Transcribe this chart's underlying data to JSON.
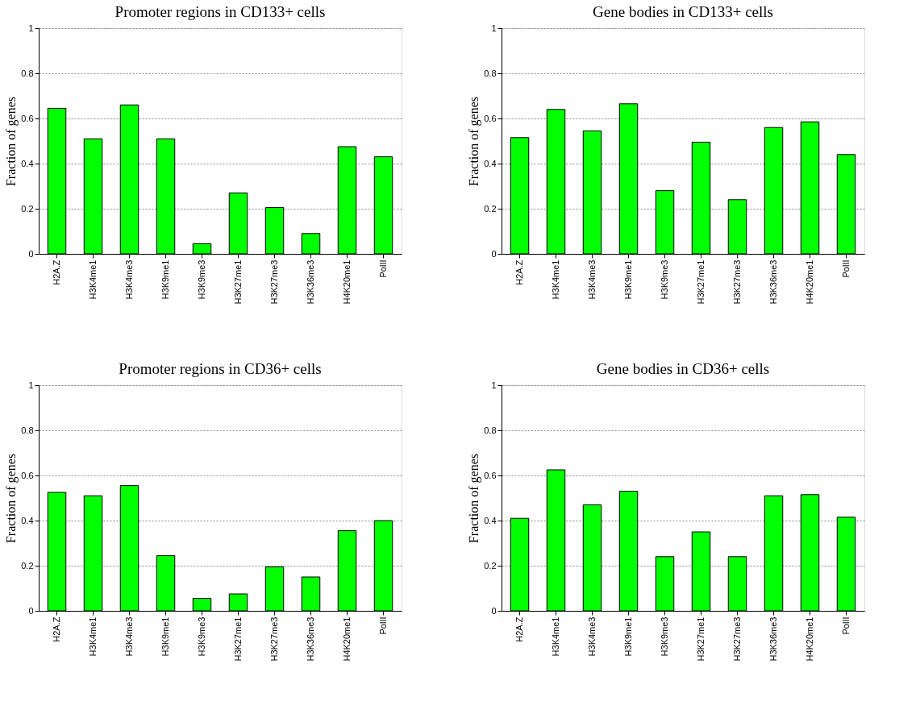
{
  "chart_data": [
    {
      "type": "bar",
      "title": "Promoter regions in CD133+ cells",
      "ylabel": "Fraction of genes",
      "categories": [
        "H2A.Z",
        "H3K4me1",
        "H3K4me3",
        "H3K9me1",
        "H3K9me3",
        "H3K27me1",
        "H3K27me3",
        "H3K36me3",
        "H4K20me1",
        "PolII"
      ],
      "values": [
        0.645,
        0.51,
        0.66,
        0.51,
        0.045,
        0.27,
        0.205,
        0.09,
        0.475,
        0.43
      ],
      "color": "#00ff00",
      "ylim": [
        0,
        1
      ],
      "yticks": [
        0,
        0.2,
        0.4,
        0.6,
        0.8,
        1
      ],
      "grid": "y"
    },
    {
      "type": "bar",
      "title": "Gene bodies in CD133+ cells",
      "ylabel": "Fraction of genes",
      "categories": [
        "H2A.Z",
        "H3K4me1",
        "H3K4me3",
        "H3K9me1",
        "H3K9me3",
        "H3K27me1",
        "H3K27me3",
        "H3K36me3",
        "H4K20me1",
        "PolII"
      ],
      "values": [
        0.515,
        0.64,
        0.545,
        0.665,
        0.28,
        0.495,
        0.24,
        0.56,
        0.585,
        0.44
      ],
      "color": "#00ff00",
      "ylim": [
        0,
        1
      ],
      "yticks": [
        0,
        0.2,
        0.4,
        0.6,
        0.8,
        1
      ],
      "grid": "y"
    },
    {
      "type": "bar",
      "title": "Promoter regions in CD36+ cells",
      "ylabel": "Fraction of genes",
      "categories": [
        "H2A.Z",
        "H3K4me1",
        "H3K4me3",
        "H3K9me1",
        "H3K9me3",
        "H3K27me1",
        "H3K27me3",
        "H3K36me3",
        "H4K20me1",
        "PolII"
      ],
      "values": [
        0.525,
        0.51,
        0.555,
        0.245,
        0.055,
        0.075,
        0.195,
        0.15,
        0.355,
        0.4
      ],
      "color": "#00ff00",
      "ylim": [
        0,
        1
      ],
      "yticks": [
        0,
        0.2,
        0.4,
        0.6,
        0.8,
        1
      ],
      "grid": "y"
    },
    {
      "type": "bar",
      "title": "Gene bodies in CD36+ cells",
      "ylabel": "Fraction of genes",
      "categories": [
        "H2A.Z",
        "H3K4me1",
        "H3K4me3",
        "H3K9me1",
        "H3K9me3",
        "H3K27me1",
        "H3K27me3",
        "H3K36me3",
        "H4K20me1",
        "PolII"
      ],
      "values": [
        0.41,
        0.625,
        0.47,
        0.53,
        0.24,
        0.35,
        0.24,
        0.51,
        0.515,
        0.415
      ],
      "color": "#00ff00",
      "ylim": [
        0,
        1
      ],
      "yticks": [
        0,
        0.2,
        0.4,
        0.6,
        0.8,
        1
      ],
      "grid": "y"
    }
  ]
}
